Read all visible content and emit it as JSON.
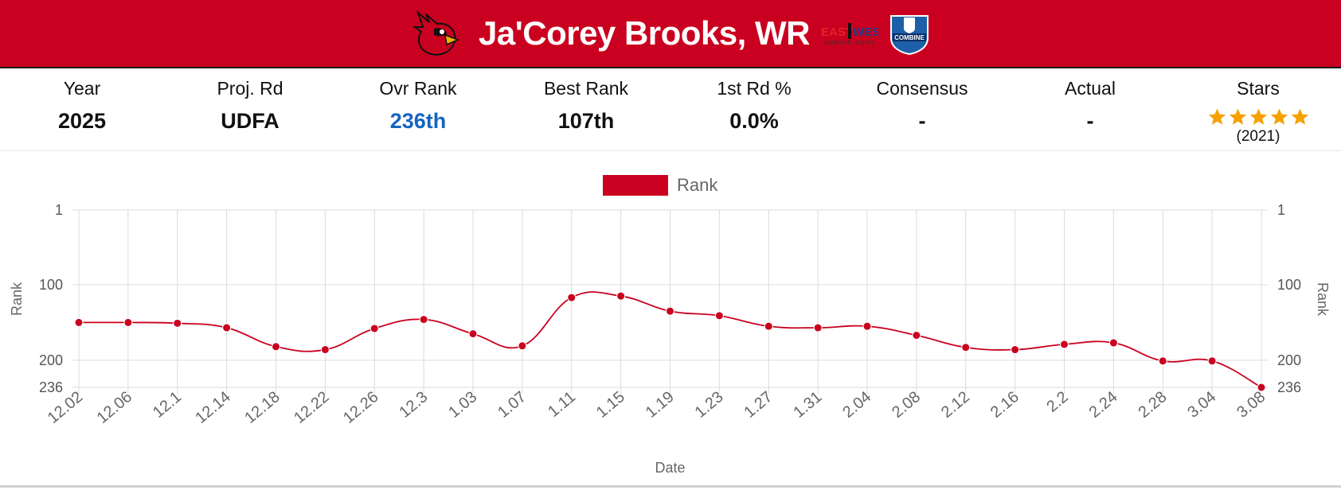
{
  "header": {
    "title": "Ja'Corey Brooks, WR",
    "background": "#c9001f",
    "logo_icon": "cardinal-logo-icon",
    "badges": [
      "east-west-shrine-bowl-badge",
      "nfl-combine-badge"
    ],
    "ew_badge_text": {
      "east": "EAST",
      "west": "WEST",
      "sub": "SHRINE BOWL"
    },
    "combine_badge_text": "COMBINE"
  },
  "stats": [
    {
      "key": "year",
      "label": "Year",
      "value": "2025",
      "accent": false
    },
    {
      "key": "proj_rd",
      "label": "Proj. Rd",
      "value": "UDFA",
      "accent": false
    },
    {
      "key": "ovr_rank",
      "label": "Ovr Rank",
      "value": "236th",
      "accent": true
    },
    {
      "key": "best_rank",
      "label": "Best Rank",
      "value": "107th",
      "accent": false
    },
    {
      "key": "first_rd_pct",
      "label": "1st Rd %",
      "value": "0.0%",
      "accent": false
    },
    {
      "key": "consensus",
      "label": "Consensus",
      "value": "-",
      "accent": false
    },
    {
      "key": "actual",
      "label": "Actual",
      "value": "-",
      "accent": false
    }
  ],
  "stars": {
    "label": "Stars",
    "count": 5,
    "year": "(2021)",
    "color": "#f5a100"
  },
  "colors": {
    "accent_blue": "#1565c0",
    "series": "#c9001f"
  },
  "chart_data": {
    "type": "line",
    "legend": "Rank",
    "legend_position": "top-center",
    "xlabel": "Date",
    "ylabel_left": "Rank",
    "ylabel_right": "Rank",
    "y_reversed": true,
    "ylim": [
      1,
      236
    ],
    "y_ticks": [
      1,
      100,
      200,
      236
    ],
    "grid": true,
    "categories": [
      "12.02",
      "12.06",
      "12.1",
      "12.14",
      "12.18",
      "12.22",
      "12.26",
      "12.3",
      "1.03",
      "1.07",
      "1.11",
      "1.15",
      "1.19",
      "1.23",
      "1.27",
      "1.31",
      "2.04",
      "2.08",
      "2.12",
      "2.16",
      "2.2",
      "2.24",
      "2.28",
      "3.04",
      "3.08"
    ],
    "series": [
      {
        "name": "Rank",
        "color": "#c9001f",
        "values": [
          150,
          150,
          151,
          157,
          182,
          186,
          158,
          146,
          165,
          181,
          117,
          115,
          135,
          141,
          155,
          157,
          155,
          167,
          183,
          186,
          179,
          177,
          201,
          201,
          236
        ]
      }
    ]
  }
}
